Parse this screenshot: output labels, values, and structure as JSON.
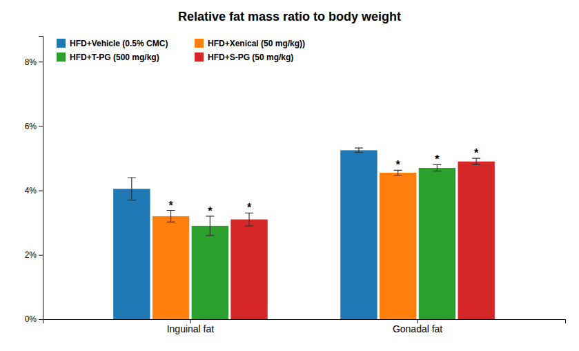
{
  "chart_data": {
    "type": "bar",
    "title": "Relative fat mass ratio to body weight",
    "categories": [
      "Inguinal fat",
      "Gonadal fat"
    ],
    "series": [
      {
        "name": "HFD+Vehicle (0.5% CMC)",
        "values": [
          0.0405,
          0.0525
        ],
        "errors": [
          0.0035,
          0.0007
        ],
        "annotations": [
          null,
          null
        ]
      },
      {
        "name": "HFD+Xenical (50 mg/kg))",
        "values": [
          0.032,
          0.0455
        ],
        "errors": [
          0.0018,
          0.0008
        ],
        "annotations": [
          "*",
          "*"
        ]
      },
      {
        "name": "HFD+T-PG (500 mg/kg)",
        "values": [
          0.029,
          0.047
        ],
        "errors": [
          0.003,
          0.001
        ],
        "annotations": [
          "*",
          "*"
        ]
      },
      {
        "name": "HFD+S-PG (50 mg/kg)",
        "values": [
          0.031,
          0.049
        ],
        "errors": [
          0.002,
          0.001
        ],
        "annotations": [
          "*",
          "*"
        ]
      }
    ],
    "ylim": [
      0,
      0.088
    ],
    "yticks": [
      {
        "value": 0,
        "label": "0%"
      },
      {
        "value": 0.02,
        "label": "2%"
      },
      {
        "value": 0.04,
        "label": "4%"
      },
      {
        "value": 0.06,
        "label": "6%"
      },
      {
        "value": 0.08,
        "label": "8%"
      }
    ],
    "grid": false,
    "legend": "upper left"
  }
}
